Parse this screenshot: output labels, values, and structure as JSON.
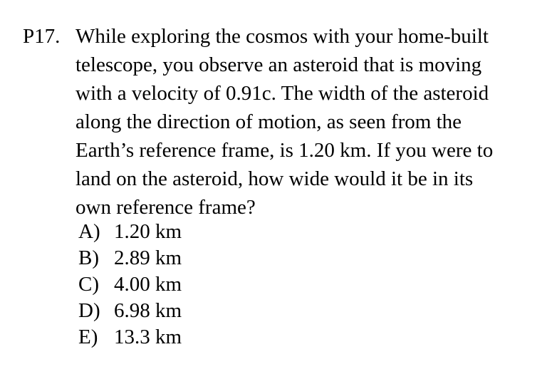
{
  "problem": {
    "number": "P17.",
    "question_lines": [
      "While exploring the cosmos with your home-built",
      "telescope, you observe an asteroid that is moving",
      "with a velocity of 0.91c.  The width of the asteroid",
      "along the direction of motion, as seen from the",
      "Earth’s reference frame, is 1.20 km. If you were to",
      "land on the asteroid, how wide would it be in its",
      "own reference frame?"
    ],
    "choices": [
      {
        "letter": "A)",
        "value": "1.20 km"
      },
      {
        "letter": "B)",
        "value": "2.89 km"
      },
      {
        "letter": "C)",
        "value": "4.00 km"
      },
      {
        "letter": "D)",
        "value": "6.98 km"
      },
      {
        "letter": "E)",
        "value": "13.3 km"
      }
    ]
  }
}
